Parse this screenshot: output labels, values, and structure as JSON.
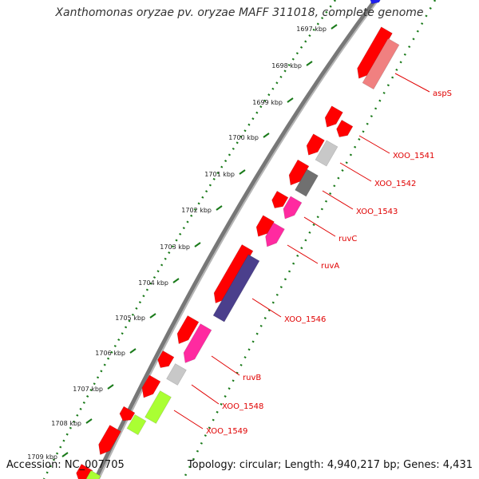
{
  "title": "Xanthomonas oryzae pv. oryzae MAFF 311018, complete genome",
  "footer": {
    "accession": "Accession: NC_007705",
    "topology": "Topology: circular; Length: 4,940,217 bp; Genes: 4,431"
  },
  "scale": {
    "ticks": [
      "1697 kbp",
      "1698 kbp",
      "1699 kbp",
      "1700 kbp",
      "1701 kbp",
      "1702 kbp",
      "1703 kbp",
      "1704 kbp",
      "1705 kbp",
      "1706 kbp",
      "1707 kbp",
      "1708 kbp",
      "1709 kbp"
    ]
  },
  "colors": {
    "backbone": "#777777",
    "cds_forward": "#ff0000",
    "label": "#e00000",
    "ruler_dots": "#1a7a1a"
  },
  "genes": [
    {
      "name": "aspS",
      "color": "#f08080"
    },
    {
      "name": "XOO_1541",
      "color": "#ff0000"
    },
    {
      "name": "XOO_1542",
      "color": "#c8c8c8"
    },
    {
      "name": "XOO_1543",
      "color": "#707070"
    },
    {
      "name": "ruvC",
      "color": "#ff2aa0"
    },
    {
      "name": "ruvA",
      "color": "#ff2aa0"
    },
    {
      "name": "XOO_1546",
      "color": "#4b3f8c"
    },
    {
      "name": "ruvB",
      "color": "#ff2aa0"
    },
    {
      "name": "XOO_1548",
      "color": "#c8c8c8"
    },
    {
      "name": "XOO_1549",
      "color": "#aaff33"
    }
  ]
}
